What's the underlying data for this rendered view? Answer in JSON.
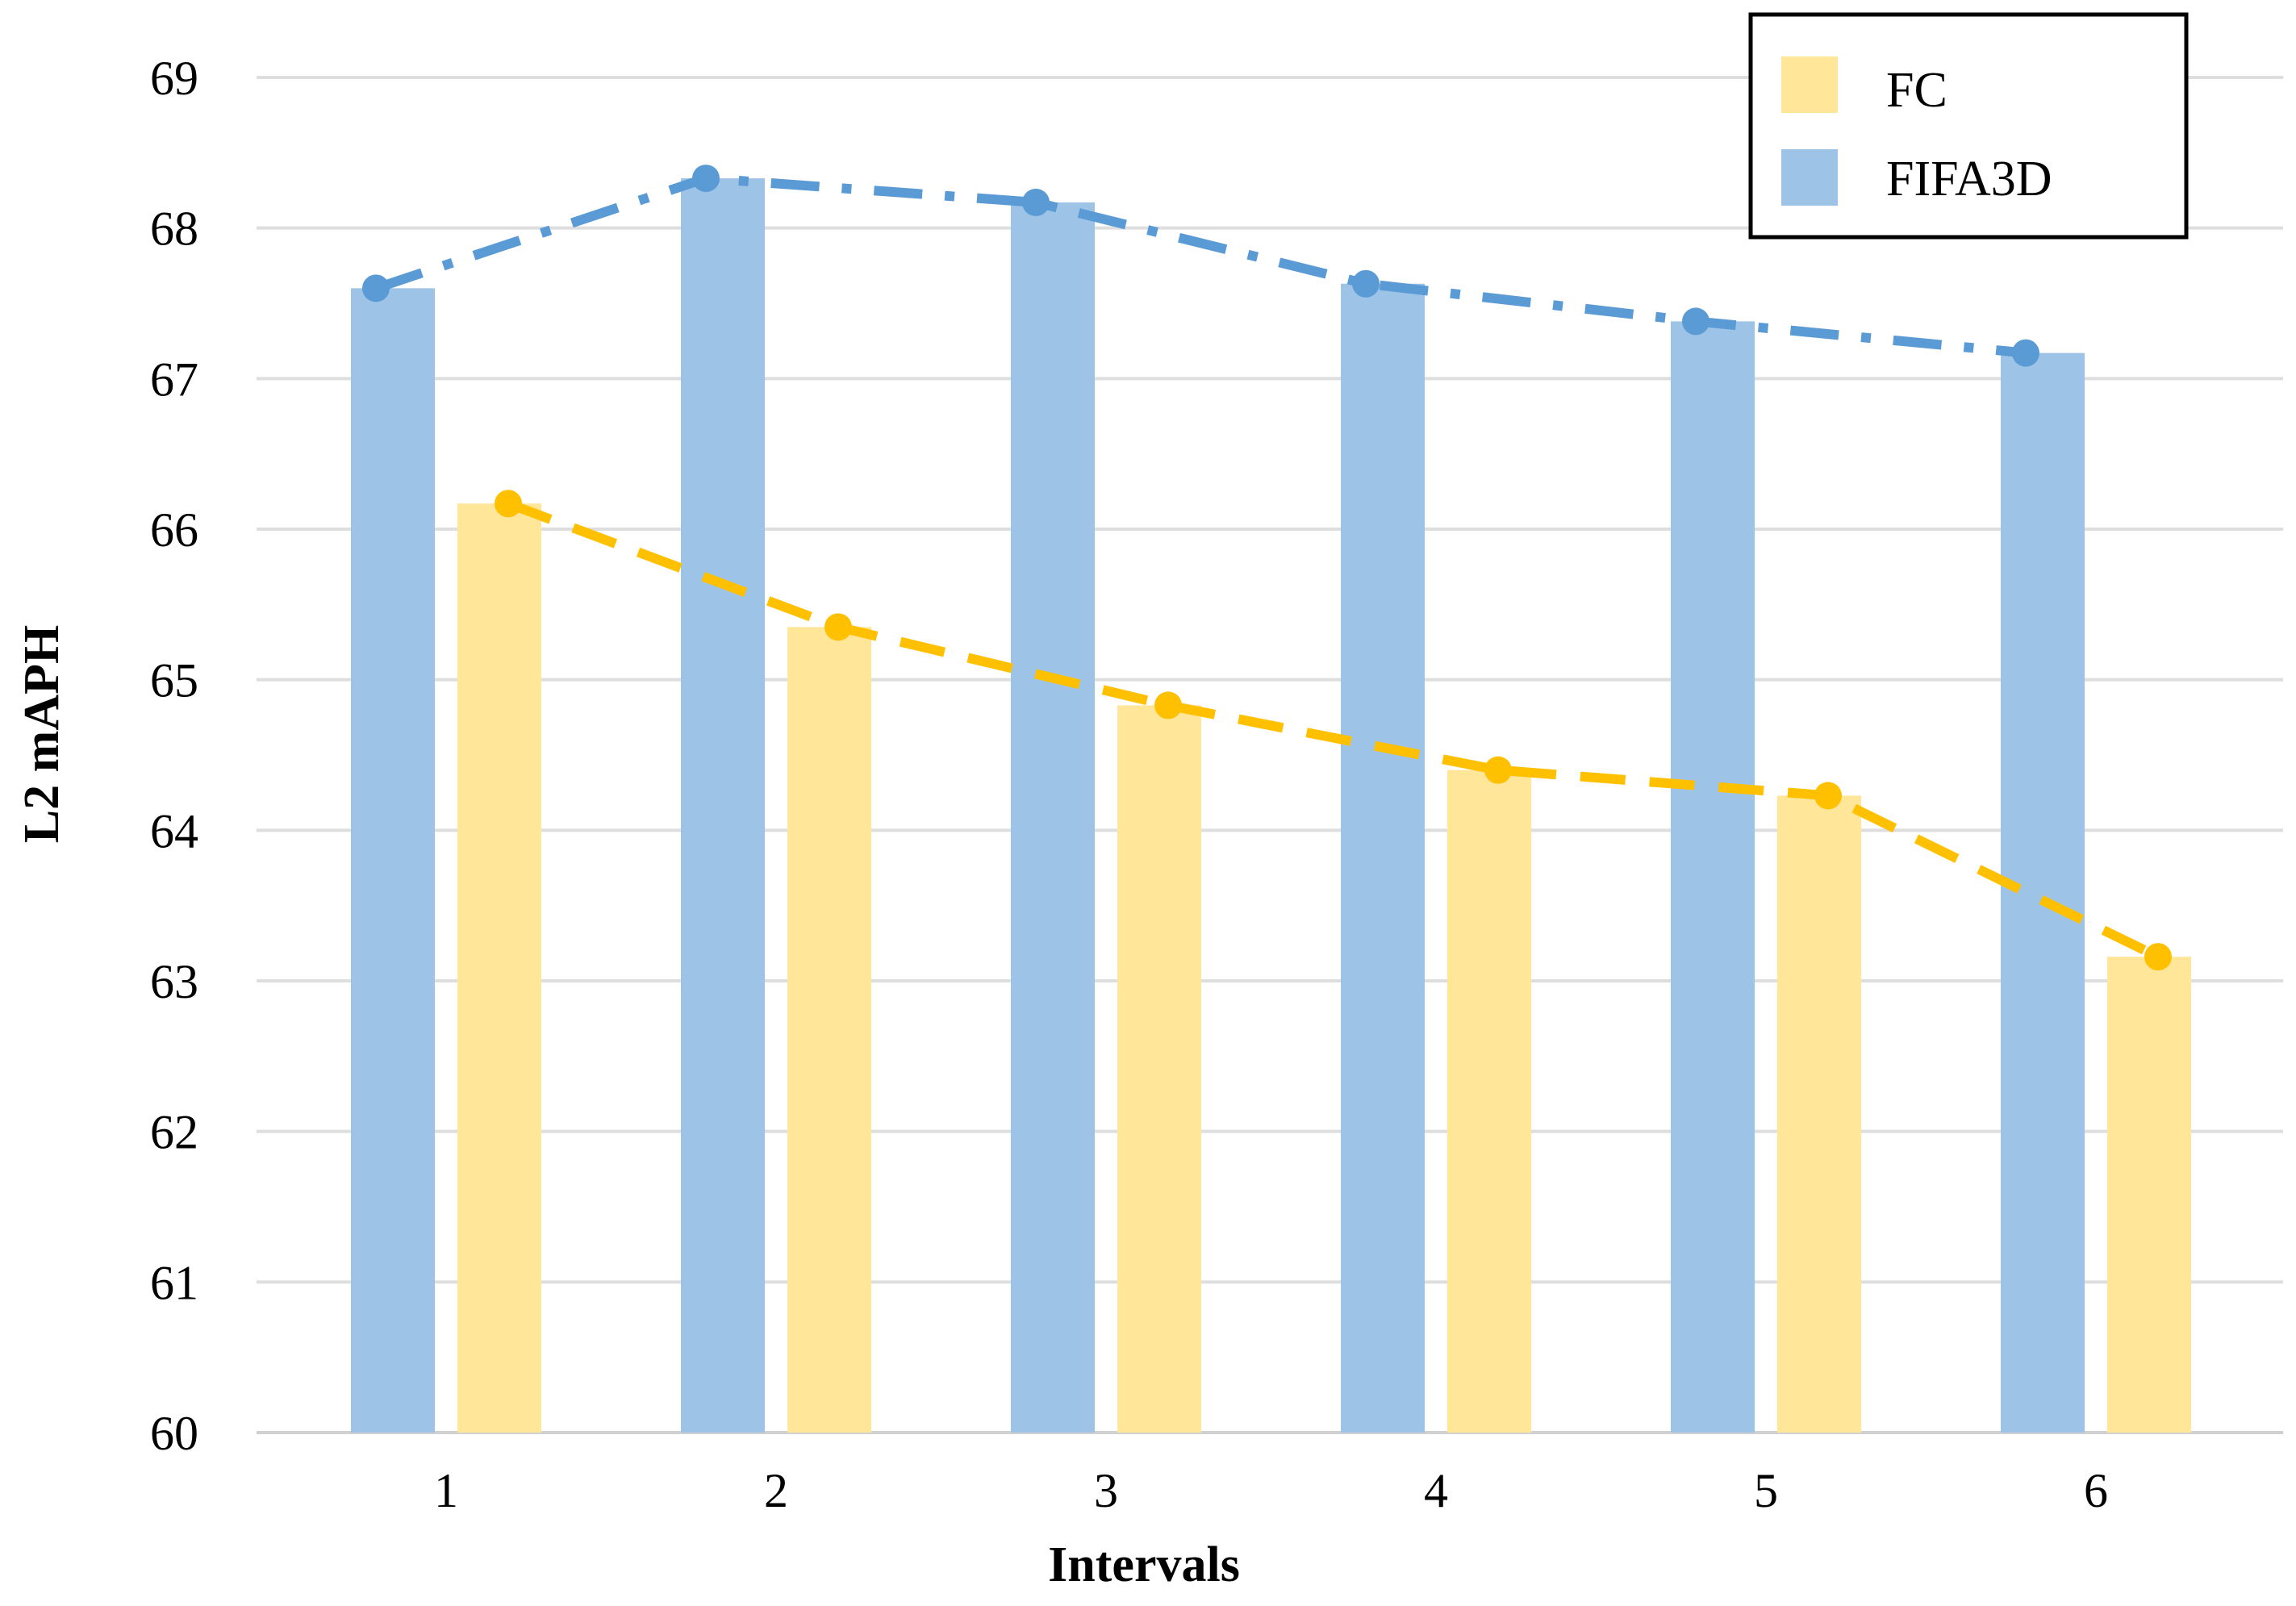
{
  "chart_data": {
    "type": "bar",
    "title": "",
    "xlabel": "Intervals",
    "ylabel": "L2 mAPH",
    "ylim": [
      60,
      69
    ],
    "yticks": [
      "60",
      "61",
      "62",
      "63",
      "64",
      "65",
      "66",
      "67",
      "68",
      "69"
    ],
    "categories": [
      "1",
      "2",
      "3",
      "4",
      "5",
      "6"
    ],
    "grid": true,
    "legend_position": "top-right",
    "series": [
      {
        "name": "FIFA3D",
        "bar_color": "#9DC3E6",
        "line_color": "#5B9BD5",
        "line_style": "dash-dot",
        "values": [
          67.6,
          68.33,
          68.17,
          67.63,
          67.38,
          67.17
        ]
      },
      {
        "name": "FC",
        "bar_color": "#FFE699",
        "line_color": "#FFC000",
        "line_style": "dashed",
        "values": [
          66.17,
          65.35,
          64.83,
          64.4,
          64.23,
          63.16
        ]
      }
    ],
    "legend_order": [
      "FC",
      "FIFA3D"
    ]
  }
}
